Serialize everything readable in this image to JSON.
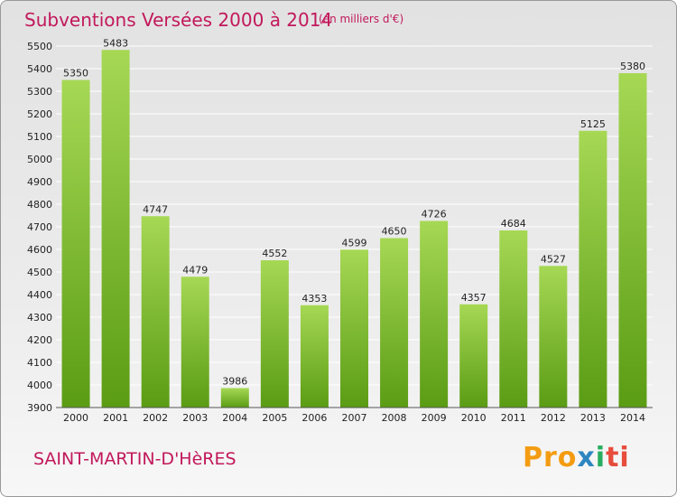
{
  "header": {
    "title": "Subventions Versées 2000 à 2014",
    "unit": "(en milliers d'€)"
  },
  "footer": {
    "city": "SAINT-MARTIN-D'HèRES",
    "logo": "Proxiti"
  },
  "colors": {
    "title": "#c2185b",
    "bar_top": "#a6d854",
    "bar_bottom": "#5a9c14",
    "grid": "#ffffff"
  },
  "chart_data": {
    "type": "bar",
    "title": "Subventions Versées 2000 à 2014",
    "subtitle": "(en milliers d'€)",
    "categories": [
      "2000",
      "2001",
      "2002",
      "2003",
      "2004",
      "2005",
      "2006",
      "2007",
      "2008",
      "2009",
      "2010",
      "2011",
      "2012",
      "2013",
      "2014"
    ],
    "values": [
      5350,
      5483,
      4747,
      4479,
      3986,
      4552,
      4353,
      4599,
      4650,
      4726,
      4357,
      4684,
      4527,
      5125,
      5380
    ],
    "ylim": [
      3900,
      5500
    ],
    "yticks": [
      3900,
      4000,
      4100,
      4200,
      4300,
      4400,
      4500,
      4600,
      4700,
      4800,
      4900,
      5000,
      5100,
      5200,
      5300,
      5400,
      5500
    ],
    "grid": true,
    "xlabel": "",
    "ylabel": ""
  }
}
